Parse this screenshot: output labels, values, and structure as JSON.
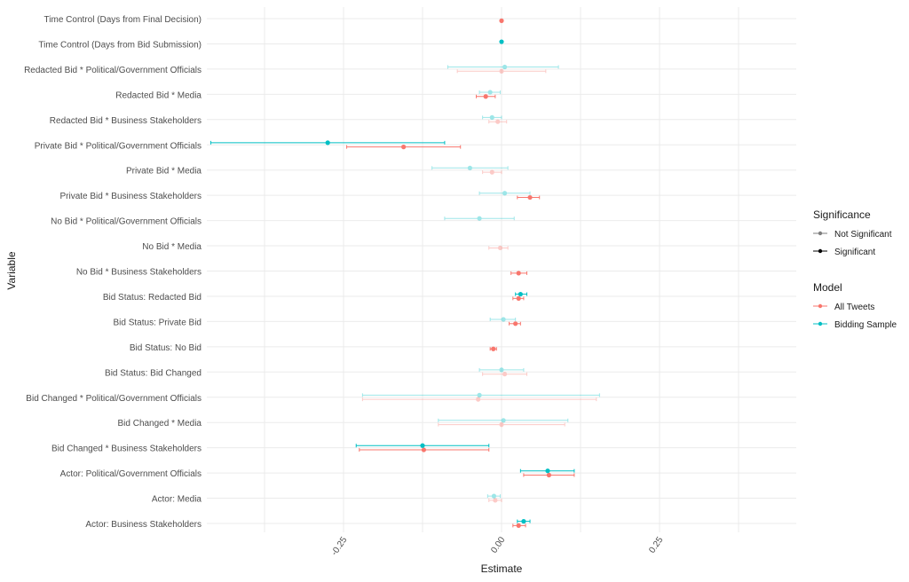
{
  "chart_data": {
    "type": "coefficient-plot",
    "xlabel": "Estimate",
    "ylabel": "Variable",
    "xlim": [
      -0.46,
      0.46
    ],
    "xticks": [
      -0.25,
      0.0,
      0.25
    ],
    "xtick_labels": [
      "-0.25",
      "0.00",
      "0.25"
    ],
    "variables": [
      "Time Control (Days from Final Decision)",
      "Time Control (Days from Bid Submission)",
      "Redacted Bid * Political/Government Officials",
      "Redacted Bid * Media",
      "Redacted Bid * Business Stakeholders",
      "Private Bid * Political/Government Officials",
      "Private Bid * Media",
      "Private Bid * Business Stakeholders",
      "No Bid * Political/Government Officials",
      "No Bid * Media",
      "No Bid * Business Stakeholders",
      "Bid Status: Redacted Bid",
      "Bid Status: Private Bid",
      "Bid Status: No Bid",
      "Bid Status: Bid Changed",
      "Bid Changed * Political/Government Officials",
      "Bid Changed * Media",
      "Bid Changed * Business Stakeholders",
      "Actor: Political/Government Officials",
      "Actor: Media",
      "Actor: Business Stakeholders"
    ],
    "series": [
      {
        "name": "All Tweets",
        "color": "#F8766D",
        "estimates": [
          0.0,
          null,
          0.0,
          -0.025,
          -0.006,
          -0.155,
          -0.015,
          0.045,
          null,
          -0.002,
          0.027,
          0.027,
          0.022,
          -0.013,
          0.005,
          -0.037,
          0.0,
          -0.123,
          0.075,
          -0.01,
          0.027
        ],
        "lower": [
          0.0,
          null,
          -0.07,
          -0.04,
          -0.02,
          -0.245,
          -0.03,
          0.025,
          null,
          -0.02,
          0.015,
          0.018,
          0.012,
          -0.018,
          -0.03,
          -0.22,
          -0.1,
          -0.225,
          0.035,
          -0.02,
          0.018
        ],
        "upper": [
          0.0,
          null,
          0.07,
          -0.01,
          0.008,
          -0.065,
          0.0,
          0.06,
          null,
          0.01,
          0.04,
          0.035,
          0.03,
          -0.008,
          0.04,
          0.15,
          0.1,
          -0.02,
          0.115,
          0.0,
          0.038
        ],
        "significant": [
          true,
          null,
          false,
          true,
          false,
          true,
          false,
          true,
          null,
          false,
          true,
          true,
          true,
          true,
          false,
          false,
          false,
          true,
          true,
          false,
          true
        ]
      },
      {
        "name": "Bidding Sample",
        "color": "#00BFC4",
        "estimates": [
          null,
          0.0,
          0.005,
          -0.018,
          -0.015,
          -0.275,
          -0.05,
          0.005,
          -0.035,
          null,
          null,
          0.03,
          0.003,
          null,
          0.0,
          -0.035,
          0.003,
          -0.125,
          0.073,
          -0.012,
          0.035
        ],
        "lower": [
          null,
          0.0,
          -0.085,
          -0.035,
          -0.03,
          -0.46,
          -0.11,
          -0.035,
          -0.09,
          null,
          null,
          0.022,
          -0.018,
          null,
          -0.035,
          -0.22,
          -0.1,
          -0.23,
          0.03,
          -0.022,
          0.025
        ],
        "upper": [
          null,
          0.0,
          0.09,
          -0.002,
          0.0,
          -0.09,
          0.01,
          0.045,
          0.02,
          null,
          null,
          0.04,
          0.022,
          null,
          0.035,
          0.155,
          0.105,
          -0.02,
          0.115,
          -0.002,
          0.045
        ],
        "significant": [
          null,
          true,
          false,
          false,
          false,
          true,
          false,
          false,
          false,
          null,
          null,
          true,
          false,
          null,
          false,
          false,
          false,
          true,
          true,
          false,
          true
        ]
      }
    ],
    "legend": [
      {
        "title": "Significance",
        "items": [
          {
            "label": "Not Significant",
            "color": "#7f7f7f"
          },
          {
            "label": "Significant",
            "color": "#000000"
          }
        ]
      },
      {
        "title": "Model",
        "items": [
          {
            "label": "All Tweets",
            "color": "#F8766D"
          },
          {
            "label": "Bidding Sample",
            "color": "#00BFC4"
          }
        ]
      }
    ],
    "legend_position": "right",
    "grid": true
  }
}
